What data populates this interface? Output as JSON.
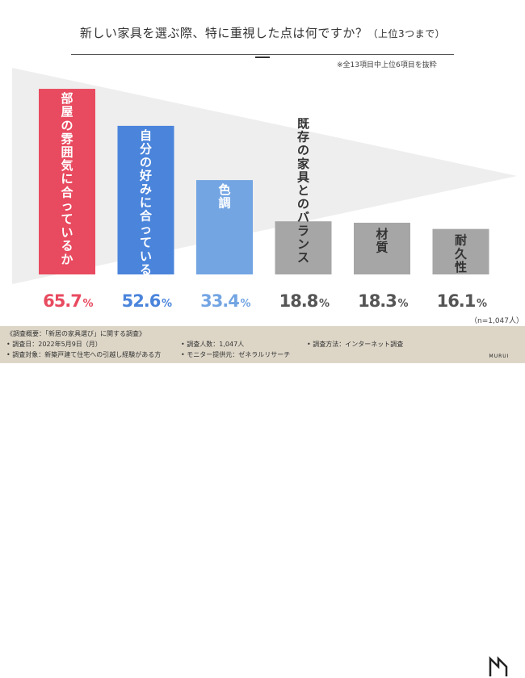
{
  "title": "新しい家具を選ぶ際、特に重視した点は何ですか？",
  "title_suffix": "（上位3つまで）",
  "note": "※全13項目中上位6項目を抜粋",
  "sample_note": "（n=1,047人）",
  "colors": {
    "red": "#e84a5f",
    "blue": "#4a84db",
    "lightblue": "#73a5e3",
    "gray": "#a6a6a6",
    "footer": "#ddd6c7",
    "background_arrow": "#eeeeee"
  },
  "chart_data": {
    "type": "bar",
    "title": "新しい家具を選ぶ際、特に重視した点は何ですか？（上位3つまで）",
    "unit": "%",
    "ylim": [
      0,
      70
    ],
    "categories": [
      "部屋の雰囲気に合っているか",
      "自分の好みに合っているか",
      "色調",
      "既存の家具とのバランス",
      "材質",
      "耐久性"
    ],
    "values": [
      65.7,
      52.6,
      33.4,
      18.8,
      18.3,
      16.1
    ],
    "value_labels": [
      "65.7",
      "52.6",
      "33.4",
      "18.8",
      "18.3",
      "16.1"
    ],
    "bar_colors": [
      "#e84a5f",
      "#4a84db",
      "#73a5e3",
      "#a6a6a6",
      "#a6a6a6",
      "#a6a6a6"
    ],
    "label_colors": [
      "#ffffff",
      "#ffffff",
      "#ffffff",
      "#333333",
      "#333333",
      "#333333"
    ],
    "value_colors": [
      "#e84a5f",
      "#4a84db",
      "#73a5e3",
      "#555555",
      "#555555",
      "#555555"
    ]
  },
  "footer": {
    "heading": "《調査概要：「新居の家具選び」に関する調査》",
    "date": "• 調査日：2022年5月9日（月）",
    "count": "• 調査人数：1,047人",
    "method": "• 調査方法：インターネット調査",
    "target": "• 調査対象：新築戸建て住宅への引越し経験がある方",
    "provider": "• モニター提供元：ゼネラルリサーチ",
    "brand": "MURUI"
  }
}
